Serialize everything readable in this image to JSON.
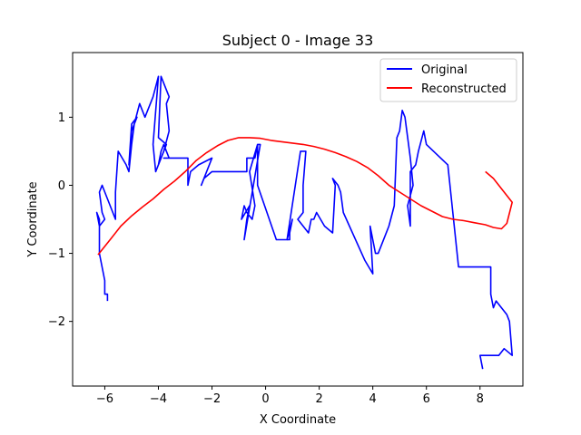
{
  "chart_data": {
    "type": "line",
    "title": "Subject 0 - Image 33",
    "xlabel": "X Coordinate",
    "ylabel": "Y Coordinate",
    "xlim": [
      -7.2,
      9.6
    ],
    "ylim": [
      -2.95,
      1.95
    ],
    "xticks": [
      -6,
      -4,
      -2,
      0,
      2,
      4,
      6,
      8
    ],
    "yticks": [
      -2,
      -1,
      0,
      1
    ],
    "grid": false,
    "legend_position": "upper right",
    "series": [
      {
        "name": "Original",
        "color": "#0000ff",
        "x": [
          -5.9,
          -5.9,
          -6.0,
          -6.0,
          -6.2,
          -6.2,
          -6.3,
          -6.2,
          -6.0,
          -6.1,
          -6.2,
          -6.1,
          -5.9,
          -5.6,
          -5.6,
          -5.5,
          -5.2,
          -5.1,
          -5.0,
          -4.9,
          -5.0,
          -5.1,
          -5.0,
          -4.8,
          -4.9,
          -4.7,
          -4.5,
          -4.2,
          -4.0,
          -4.2,
          -4.1,
          -3.8,
          -3.6,
          -3.7,
          -3.6,
          -3.9,
          -4.0,
          -3.7,
          -4.0,
          -3.9,
          -3.8,
          -3.7,
          -3.6,
          -3.7,
          -3.8,
          -3.5,
          -3.4,
          -2.9,
          -2.9,
          -2.8,
          -2.5,
          -2.0,
          -2.2,
          -2.4,
          -2.3,
          -2.0,
          -1.7,
          -0.7,
          -0.7,
          -0.4,
          -0.3,
          -0.2,
          -0.8,
          -0.7,
          -0.6,
          -0.9,
          -0.8,
          -0.7,
          -0.5,
          -0.4,
          -0.6,
          -0.3,
          -0.3,
          0.4,
          0.4,
          0.9,
          0.9,
          1.0,
          0.8,
          1.3,
          1.5,
          1.4,
          1.4,
          1.2,
          1.4,
          1.6,
          1.7,
          1.8,
          1.9,
          2.2,
          2.5,
          2.6,
          2.5,
          2.7,
          2.8,
          2.9,
          3.7,
          4.0,
          3.9,
          4.1,
          4.2,
          4.6,
          4.8,
          4.9,
          5.0,
          5.1,
          5.2,
          5.4,
          5.5,
          5.3,
          5.4,
          5.4,
          5.6,
          5.7,
          5.9,
          6.0,
          6.8,
          7.2,
          8.4,
          8.4,
          8.5,
          8.6,
          8.8,
          9.0,
          9.1,
          9.2,
          8.9,
          8.7,
          8.6,
          8.0,
          8.0,
          8.1
        ],
        "y": [
          -1.7,
          -1.6,
          -1.6,
          -1.4,
          -1.0,
          -0.5,
          -0.4,
          -0.6,
          -0.5,
          -0.4,
          -0.1,
          0.0,
          -0.2,
          -0.5,
          -0.1,
          0.5,
          0.3,
          0.2,
          0.6,
          0.9,
          0.8,
          0.3,
          0.9,
          1.0,
          0.9,
          1.2,
          1.0,
          1.3,
          1.6,
          0.6,
          0.2,
          0.5,
          0.8,
          1.2,
          1.3,
          1.6,
          0.7,
          0.6,
          0.3,
          0.5,
          0.6,
          0.5,
          0.4,
          0.4,
          0.4,
          0.4,
          0.4,
          0.4,
          0.0,
          0.2,
          0.3,
          0.4,
          0.2,
          0.0,
          0.1,
          0.2,
          0.2,
          0.2,
          0.4,
          0.4,
          0.6,
          0.6,
          -0.8,
          -0.5,
          -0.3,
          -0.5,
          -0.3,
          -0.4,
          -0.5,
          -0.3,
          0.2,
          0.6,
          0.0,
          -0.8,
          -0.8,
          -0.8,
          -0.7,
          -0.5,
          -0.8,
          0.5,
          0.5,
          0.0,
          -0.4,
          -0.5,
          -0.6,
          -0.7,
          -0.5,
          -0.5,
          -0.4,
          -0.6,
          -0.7,
          0.0,
          0.1,
          0.0,
          -0.1,
          -0.4,
          -1.1,
          -1.3,
          -0.6,
          -1.0,
          -1.0,
          -0.6,
          -0.3,
          0.7,
          0.8,
          1.1,
          1.0,
          0.4,
          0.0,
          -0.3,
          -0.6,
          0.2,
          0.3,
          0.5,
          0.8,
          0.6,
          0.3,
          -1.2,
          -1.2,
          -1.6,
          -1.8,
          -1.7,
          -1.8,
          -1.9,
          -2.0,
          -2.5,
          -2.4,
          -2.5,
          -2.5,
          -2.5,
          -2.5,
          -2.7
        ]
      },
      {
        "name": "Reconstructed",
        "color": "#ff0000",
        "x": [
          -6.25,
          -5.8,
          -5.4,
          -5.0,
          -4.6,
          -4.2,
          -3.8,
          -3.4,
          -3.0,
          -2.6,
          -2.2,
          -1.8,
          -1.4,
          -1.0,
          -0.6,
          -0.2,
          0.2,
          0.6,
          1.0,
          1.4,
          1.8,
          2.2,
          2.6,
          3.0,
          3.4,
          3.8,
          4.2,
          4.6,
          5.0,
          5.4,
          5.8,
          6.2,
          6.6,
          7.0,
          7.4,
          7.8,
          8.2,
          8.5,
          8.8,
          9.0,
          9.2,
          8.8,
          8.5,
          8.2
        ],
        "y": [
          -1.02,
          -0.8,
          -0.6,
          -0.45,
          -0.32,
          -0.2,
          -0.06,
          0.06,
          0.2,
          0.36,
          0.48,
          0.58,
          0.66,
          0.7,
          0.7,
          0.69,
          0.66,
          0.64,
          0.62,
          0.6,
          0.57,
          0.53,
          0.48,
          0.42,
          0.35,
          0.26,
          0.14,
          0.0,
          -0.1,
          -0.2,
          -0.3,
          -0.38,
          -0.46,
          -0.5,
          -0.52,
          -0.55,
          -0.58,
          -0.62,
          -0.64,
          -0.56,
          -0.25,
          -0.05,
          0.1,
          0.2
        ]
      }
    ]
  }
}
